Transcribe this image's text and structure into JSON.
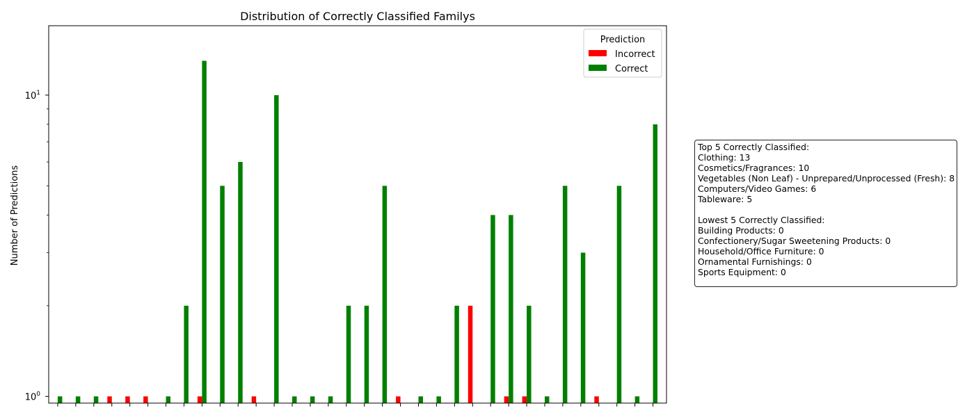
{
  "chart_data": {
    "type": "bar",
    "title": "Distribution of Correctly Classified Familys",
    "xlabel": "",
    "ylabel": "Number of Predictions",
    "y_scale": "log",
    "ylim": [
      0.95,
      17
    ],
    "y_ticks": [
      {
        "value": 1,
        "label": "10",
        "exp": "0"
      },
      {
        "value": 10,
        "label": "10",
        "exp": "1"
      }
    ],
    "grid": false,
    "legend": {
      "title": "Prediction",
      "placement": "top-right"
    },
    "colors": {
      "Incorrect": "#ff0000",
      "Correct": "#008000"
    },
    "categories": [
      "",
      "",
      "",
      "",
      "",
      "",
      "",
      "",
      "",
      "",
      "",
      "",
      "",
      "",
      "",
      "",
      "",
      "",
      "",
      "",
      "",
      "",
      "",
      "",
      "",
      "",
      "",
      "",
      "",
      "",
      "",
      "",
      "",
      ""
    ],
    "series": [
      {
        "name": "Incorrect",
        "values": [
          0,
          0,
          0,
          1,
          1,
          1,
          0,
          0,
          1,
          0,
          0,
          1,
          0,
          0,
          0,
          0,
          0,
          0,
          0,
          1,
          0,
          0,
          0,
          2,
          0,
          1,
          1,
          0,
          0,
          0,
          1,
          0,
          0,
          0
        ]
      },
      {
        "name": "Correct",
        "values": [
          1,
          1,
          1,
          0,
          0,
          0,
          1,
          2,
          13,
          5,
          6,
          0,
          10,
          1,
          1,
          1,
          2,
          2,
          5,
          0,
          1,
          1,
          2,
          0,
          4,
          4,
          2,
          1,
          5,
          3,
          0,
          5,
          1,
          8
        ]
      }
    ]
  },
  "summary_box": {
    "lines": [
      "Top 5 Correctly Classified:",
      "Clothing: 13",
      "Cosmetics/Fragrances: 10",
      "Vegetables (Non Leaf) - Unprepared/Unprocessed (Fresh): 8",
      "Computers/Video Games: 6",
      "Tableware: 5",
      "",
      "Lowest 5 Correctly Classified:",
      "Building Products: 0",
      "Confectionery/Sugar Sweetening Products: 0",
      "Household/Office Furniture: 0",
      "Ornamental Furnishings: 0",
      "Sports Equipment: 0"
    ]
  }
}
